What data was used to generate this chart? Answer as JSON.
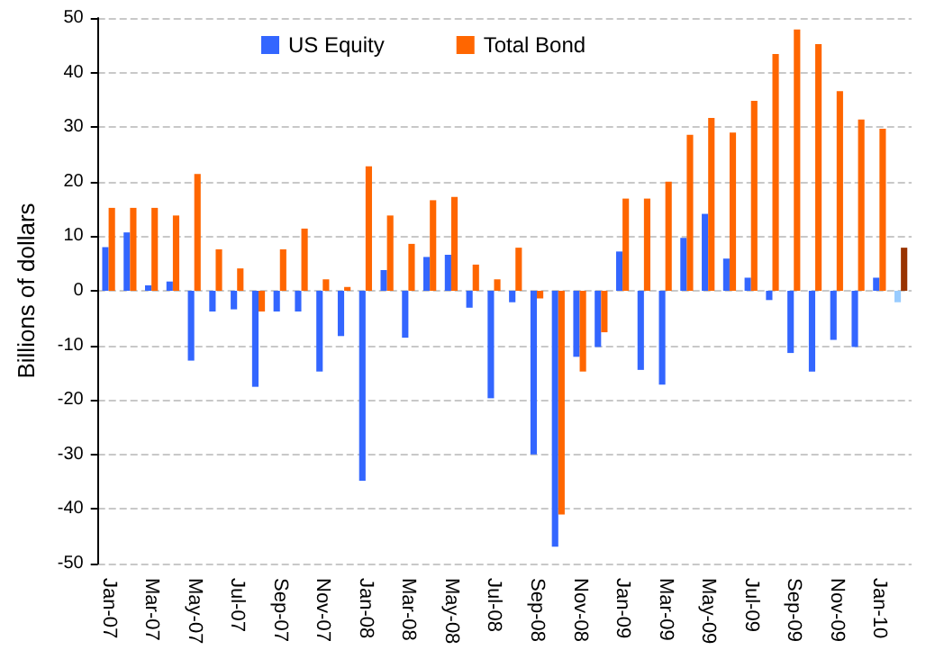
{
  "chart_data": {
    "type": "bar",
    "ylabel": "Billions of dollars",
    "categories": [
      "Jan-07",
      null,
      "Mar-07",
      null,
      "May-07",
      null,
      "Jul-07",
      null,
      "Sep-07",
      null,
      "Nov-07",
      null,
      "Jan-08",
      null,
      "Mar-08",
      null,
      "May-08",
      null,
      "Jul-08",
      null,
      "Sep-08",
      null,
      "Nov-08",
      null,
      "Jan-09",
      null,
      "Mar-09",
      null,
      "May-09",
      null,
      "Jul-09",
      null,
      "Sep-09",
      null,
      "Nov-09",
      null,
      "Jan-10",
      null
    ],
    "series": [
      {
        "name": "US Equity",
        "color": "#3366ff",
        "colors": [
          "#3366ff",
          "#3366ff",
          "#3366ff",
          "#3366ff",
          "#3366ff",
          "#3366ff",
          "#3366ff",
          "#3366ff",
          "#3366ff",
          "#3366ff",
          "#3366ff",
          "#3366ff",
          "#3366ff",
          "#3366ff",
          "#3366ff",
          "#3366ff",
          "#3366ff",
          "#3366ff",
          "#3366ff",
          "#3366ff",
          "#3366ff",
          "#3366ff",
          "#3366ff",
          "#3366ff",
          "#3366ff",
          "#3366ff",
          "#3366ff",
          "#3366ff",
          "#3366ff",
          "#3366ff",
          "#3366ff",
          "#3366ff",
          "#3366ff",
          "#3366ff",
          "#3366ff",
          "#3366ff",
          "#3366ff",
          "#99ccff"
        ],
        "values": [
          8,
          10.7,
          1,
          1.7,
          -12.8,
          -3.8,
          -3.4,
          -17.6,
          -3.8,
          -3.8,
          -14.8,
          -8.3,
          -34.8,
          3.8,
          -8.6,
          6.2,
          6.6,
          -3.1,
          -19.7,
          -2.1,
          -30,
          -46.9,
          -12.1,
          -10.3,
          7.2,
          -14.5,
          -17.2,
          9.7,
          14.1,
          5.9,
          2.4,
          -1.7,
          -11.4,
          -14.8,
          -9,
          -10.3,
          2.4,
          -2.1
        ]
      },
      {
        "name": "Total Bond",
        "color": "#ff6600",
        "colors": [
          "#ff6600",
          "#ff6600",
          "#ff6600",
          "#ff6600",
          "#ff6600",
          "#ff6600",
          "#ff6600",
          "#ff6600",
          "#ff6600",
          "#ff6600",
          "#ff6600",
          "#ff6600",
          "#ff6600",
          "#ff6600",
          "#ff6600",
          "#ff6600",
          "#ff6600",
          "#ff6600",
          "#ff6600",
          "#ff6600",
          "#ff6600",
          "#ff6600",
          "#ff6600",
          "#ff6600",
          "#ff6600",
          "#ff6600",
          "#ff6600",
          "#ff6600",
          "#ff6600",
          "#ff6600",
          "#ff6600",
          "#ff6600",
          "#ff6600",
          "#ff6600",
          "#ff6600",
          "#ff6600",
          "#ff6600",
          "#993300"
        ],
        "values": [
          15.2,
          15.2,
          15.2,
          13.8,
          21.4,
          7.6,
          4.1,
          -3.8,
          7.6,
          11.4,
          2.1,
          0.7,
          22.8,
          13.8,
          8.6,
          16.6,
          17.2,
          4.8,
          2.1,
          7.9,
          -1.4,
          -41,
          -14.8,
          -7.6,
          16.9,
          16.9,
          20,
          28.6,
          31.7,
          29,
          34.8,
          43.4,
          47.9,
          45.2,
          36.6,
          31.4,
          29.7,
          7.9
        ]
      }
    ],
    "ylim": [
      -50,
      50
    ],
    "yticks": [
      -50,
      -40,
      -30,
      -20,
      -10,
      0,
      10,
      20,
      30,
      40,
      50
    ],
    "grid": "y",
    "legend": "top"
  }
}
